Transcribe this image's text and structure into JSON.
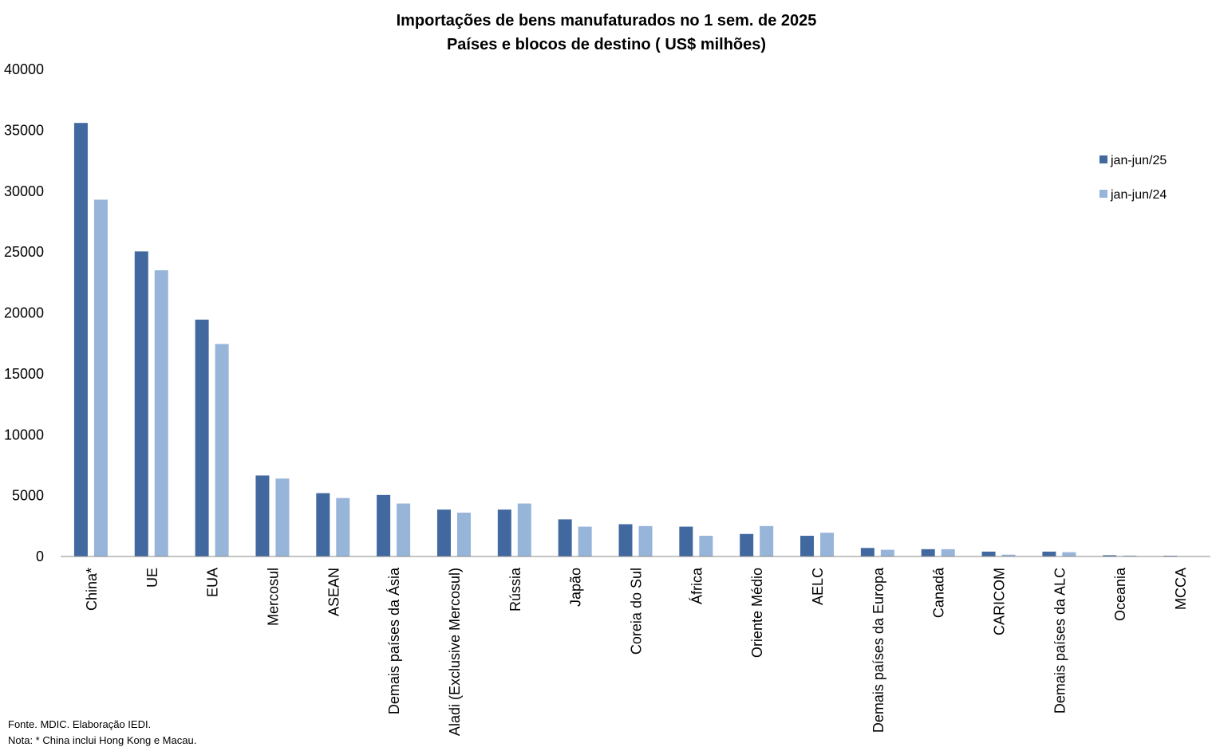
{
  "chart_data": {
    "type": "bar",
    "title": "Importações de bens manufaturados no 1 sem. de 2025",
    "subtitle": "Países e blocos de destino ( US$ milhões)",
    "categories": [
      "China*",
      "UE",
      "EUA",
      "Mercosul",
      "ASEAN",
      "Demais países da Ásia",
      "Aladi (Exclusive Mercosul)",
      "Rússia",
      "Japão",
      "Coreia do Sul",
      "África",
      "Oriente Médio",
      "AELC",
      "Demais países da Europa",
      "Canadá",
      "CARICOM",
      "Demais países da ALC",
      "Oceania",
      "MCCA"
    ],
    "series": [
      {
        "name": "jan-jun/25",
        "color": "#4169a0",
        "values": [
          35600,
          25050,
          19450,
          6650,
          5200,
          5050,
          3850,
          3850,
          3050,
          2650,
          2450,
          1850,
          1700,
          700,
          600,
          400,
          400,
          100,
          60
        ]
      },
      {
        "name": "jan-jun/24",
        "color": "#97b4d9",
        "values": [
          29300,
          23500,
          17450,
          6400,
          4800,
          4350,
          3600,
          4350,
          2450,
          2500,
          1700,
          2500,
          1950,
          550,
          600,
          150,
          350,
          80,
          20
        ]
      }
    ],
    "ylim": [
      0,
      40000
    ],
    "yticks": [
      0,
      5000,
      10000,
      15000,
      20000,
      25000,
      30000,
      35000,
      40000
    ],
    "grid": false,
    "legend_position": "right"
  },
  "notes": {
    "source": "Fonte. MDIC. Elaboração IEDI.",
    "note": "Nota: * China inclui Hong Kong e Macau."
  }
}
